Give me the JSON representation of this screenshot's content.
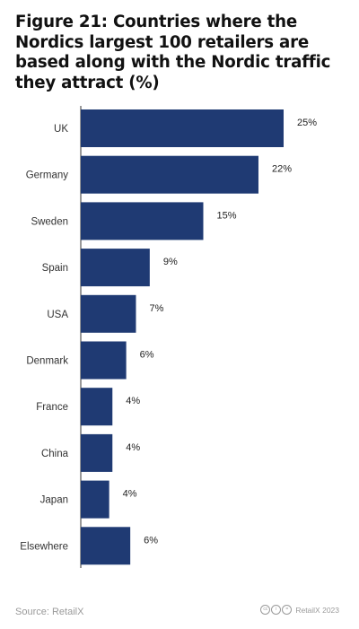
{
  "title": "Figure 21: Countries where the Nordics largest 100 retailers are based along with the Nordic traffic they attract (%)",
  "chart_data": {
    "type": "bar",
    "orientation": "horizontal",
    "categories": [
      "UK",
      "Germany",
      "Sweden",
      "Spain",
      "USA",
      "Denmark",
      "France",
      "China",
      "Japan",
      "Elsewhere"
    ],
    "values": [
      25,
      22,
      15,
      9,
      7,
      6,
      4,
      4,
      4,
      6
    ],
    "data_labels": [
      "25%",
      "22%",
      "15%",
      "9%",
      "7%",
      "6%",
      "4%",
      "4%",
      "4%",
      "6%"
    ],
    "bar_scale_values": [
      25,
      21.9,
      15.1,
      8.5,
      6.8,
      5.6,
      3.9,
      3.9,
      3.5,
      6.1
    ],
    "xlim": [
      0,
      25
    ],
    "bar_color": "#1f3a73",
    "axis_color": "#333333",
    "grid": false,
    "legend": "none"
  },
  "footer": {
    "source": "Source: RetailX",
    "credit": "RetailX 2023",
    "license_icons": [
      "cc-icon",
      "by-icon",
      "nd-icon"
    ]
  }
}
